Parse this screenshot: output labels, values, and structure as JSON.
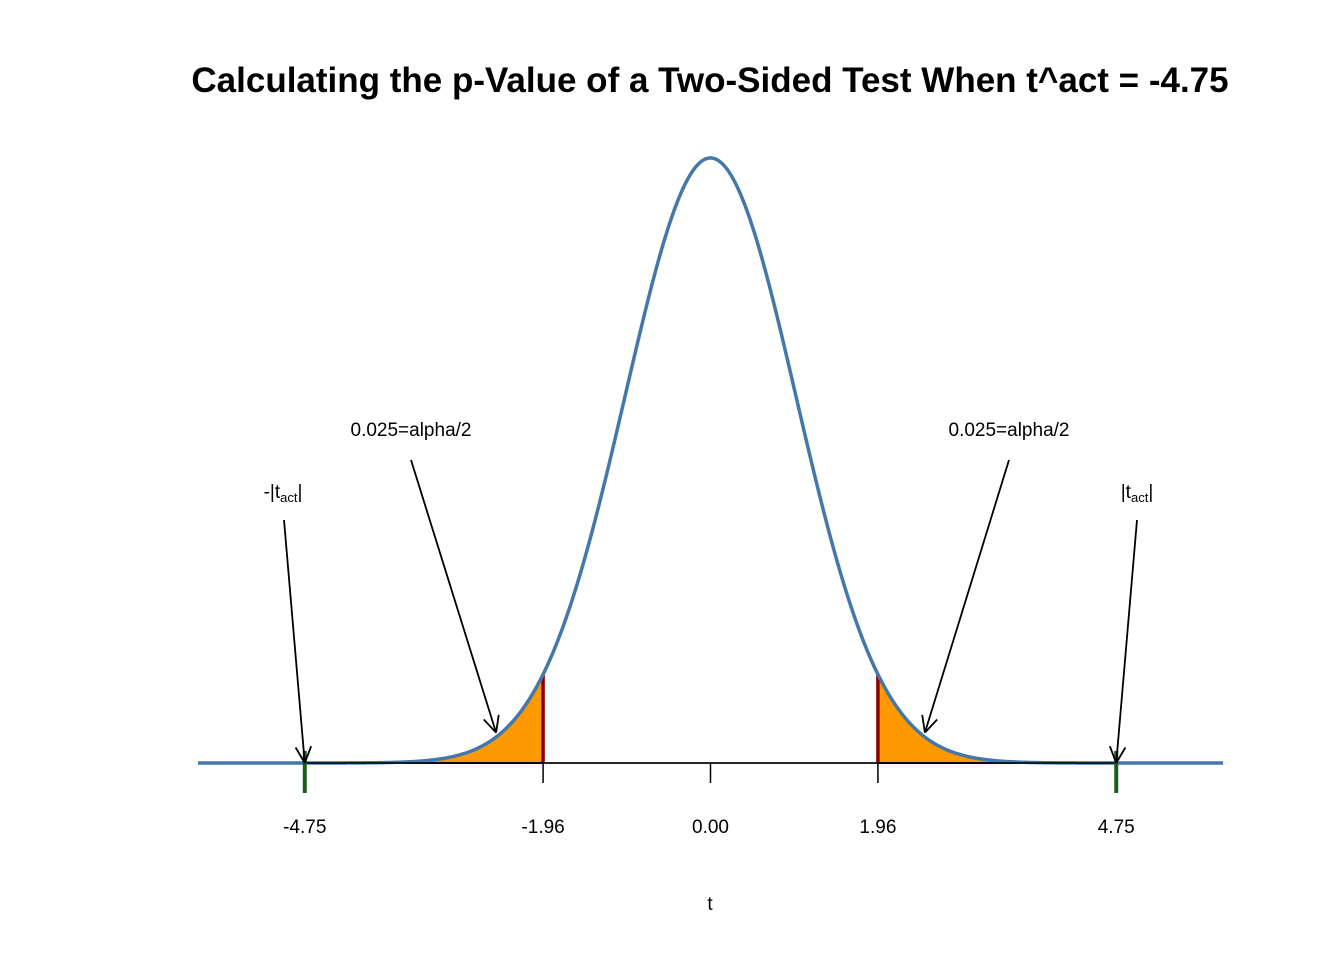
{
  "chart_data": {
    "type": "area",
    "title": "Calculating the p-Value of a Two-Sided Test When t^act = -4.75",
    "xlabel": "t",
    "ylabel": "",
    "xlim": [
      -6.0,
      6.0
    ],
    "ylim": [
      0,
      0.3989
    ],
    "distribution": "standard normal density",
    "t_act": -4.75,
    "critical_value": 1.96,
    "x_ticks": [
      {
        "value": -4.75,
        "label": "-4.75"
      },
      {
        "value": -1.96,
        "label": "-1.96"
      },
      {
        "value": 0.0,
        "label": "0.00"
      },
      {
        "value": 1.96,
        "label": "1.96"
      },
      {
        "value": 4.75,
        "label": "4.75"
      }
    ],
    "shaded_regions": [
      {
        "from": -6.0,
        "to": -1.96
      },
      {
        "from": 1.96,
        "to": 6.0
      }
    ],
    "annotations": {
      "left_area": {
        "text": "0.025=alpha/2",
        "x": -2.51,
        "y": 0.02
      },
      "right_area": {
        "text": "0.025=alpha/2",
        "x": 2.51,
        "y": 0.02
      },
      "left_tact": {
        "prefix": "-|t",
        "sub": "act",
        "suffix": "|",
        "x": -4.75,
        "y": 0.0
      },
      "right_tact": {
        "prefix": "|t",
        "sub": "act",
        "suffix": "|",
        "x": 4.75,
        "y": 0.0
      }
    },
    "colors": {
      "curve": "#4477aa",
      "fill": "#ff9900",
      "critical_line": "#8b0000",
      "tact_tick": "#1a5c1a",
      "axis": "#000000"
    }
  }
}
